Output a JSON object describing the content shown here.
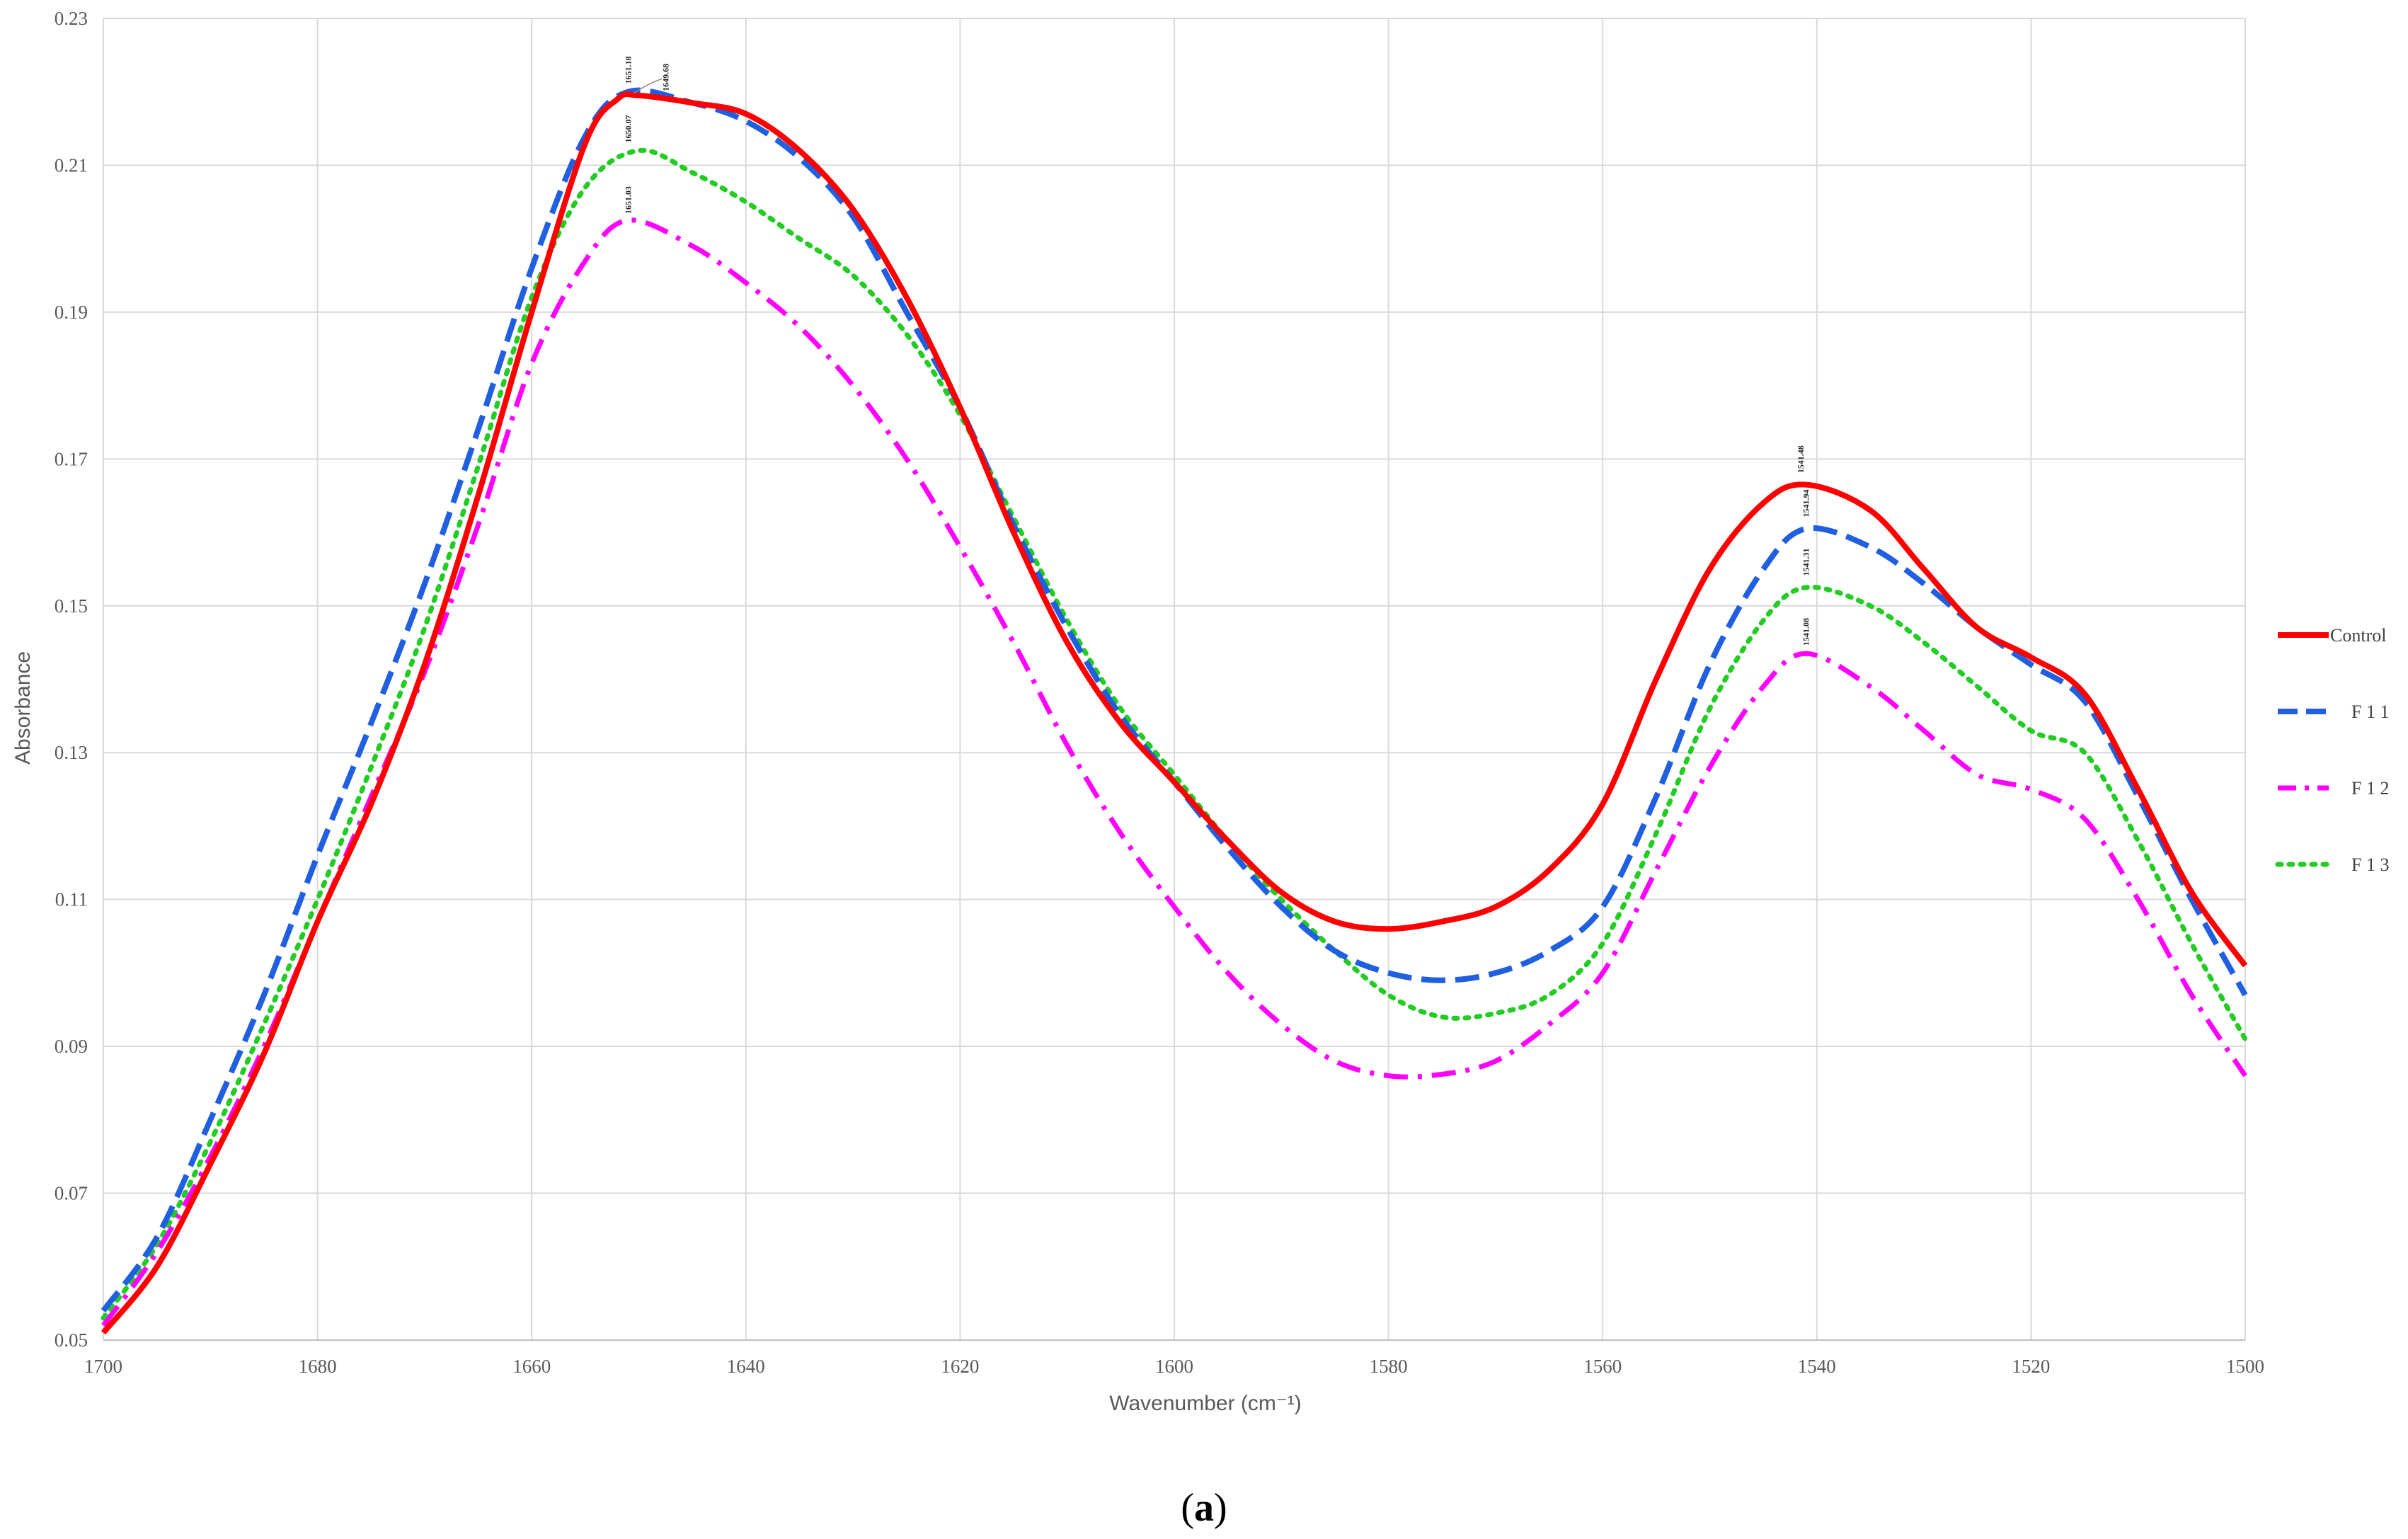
{
  "chart_data": {
    "type": "line",
    "title": "",
    "xlabel": "Wavenumber (cm⁻¹)",
    "ylabel": "Absorbance",
    "xlim": [
      1700,
      1500
    ],
    "x_reversed": true,
    "ylim": [
      0.05,
      0.23
    ],
    "x_ticks": [
      1700,
      1680,
      1660,
      1640,
      1620,
      1600,
      1580,
      1560,
      1540,
      1520,
      1500
    ],
    "y_ticks": [
      "0.05",
      "0.07",
      "0.09",
      "0.11",
      "0.13",
      "0.15",
      "0.17",
      "0.19",
      "0.21",
      "0.23"
    ],
    "grid": true,
    "legend_position": "right",
    "caption": {
      "open": "(",
      "letter": "a",
      "close": ")"
    },
    "series": [
      {
        "name": "Control",
        "color": "#ff0000",
        "style": "solid",
        "x": [
          1700,
          1695,
          1690,
          1685,
          1680,
          1675,
          1670,
          1665,
          1660,
          1655,
          1652,
          1650,
          1645,
          1640,
          1635,
          1630,
          1625,
          1620,
          1615,
          1610,
          1605,
          1600,
          1595,
          1590,
          1585,
          1580,
          1575,
          1570,
          1565,
          1560,
          1555,
          1550,
          1545,
          1541,
          1535,
          1530,
          1525,
          1520,
          1515,
          1510,
          1505,
          1500
        ],
        "y": [
          0.051,
          0.06,
          0.074,
          0.089,
          0.107,
          0.123,
          0.142,
          0.165,
          0.19,
          0.213,
          0.219,
          0.2195,
          0.2185,
          0.217,
          0.212,
          0.204,
          0.192,
          0.177,
          0.16,
          0.145,
          0.134,
          0.126,
          0.118,
          0.111,
          0.107,
          0.106,
          0.107,
          0.109,
          0.114,
          0.123,
          0.14,
          0.155,
          0.164,
          0.1665,
          0.163,
          0.155,
          0.147,
          0.143,
          0.138,
          0.125,
          0.111,
          0.101
        ]
      },
      {
        "name": "F 1 1",
        "color": "#1f5fe0",
        "style": "dashed",
        "x": [
          1700,
          1695,
          1690,
          1685,
          1680,
          1675,
          1670,
          1665,
          1660,
          1655,
          1651,
          1645,
          1640,
          1635,
          1630,
          1625,
          1620,
          1615,
          1610,
          1605,
          1600,
          1595,
          1590,
          1585,
          1580,
          1575,
          1570,
          1565,
          1560,
          1555,
          1550,
          1545,
          1541,
          1535,
          1530,
          1525,
          1520,
          1515,
          1510,
          1505,
          1500
        ],
        "y": [
          0.054,
          0.064,
          0.08,
          0.097,
          0.116,
          0.134,
          0.153,
          0.174,
          0.196,
          0.214,
          0.22,
          0.2185,
          0.216,
          0.211,
          0.203,
          0.19,
          0.177,
          0.161,
          0.147,
          0.135,
          0.126,
          0.117,
          0.109,
          0.103,
          0.1,
          0.099,
          0.1,
          0.103,
          0.109,
          0.124,
          0.142,
          0.155,
          0.1605,
          0.158,
          0.153,
          0.147,
          0.142,
          0.137,
          0.124,
          0.11,
          0.097
        ]
      },
      {
        "name": "F 1 2",
        "color": "#ff00ff",
        "style": "dashdot",
        "x": [
          1700,
          1695,
          1690,
          1685,
          1680,
          1675,
          1670,
          1665,
          1660,
          1655,
          1651,
          1645,
          1640,
          1635,
          1630,
          1625,
          1620,
          1615,
          1610,
          1605,
          1600,
          1595,
          1590,
          1585,
          1580,
          1575,
          1570,
          1565,
          1560,
          1555,
          1550,
          1545,
          1541,
          1535,
          1530,
          1525,
          1520,
          1515,
          1510,
          1505,
          1500
        ],
        "y": [
          0.052,
          0.062,
          0.075,
          0.09,
          0.107,
          0.124,
          0.141,
          0.161,
          0.183,
          0.197,
          0.2025,
          0.199,
          0.194,
          0.188,
          0.18,
          0.17,
          0.158,
          0.145,
          0.131,
          0.119,
          0.109,
          0.1,
          0.093,
          0.088,
          0.086,
          0.0862,
          0.088,
          0.093,
          0.1,
          0.114,
          0.128,
          0.139,
          0.1435,
          0.139,
          0.133,
          0.127,
          0.125,
          0.121,
          0.11,
          0.097,
          0.086
        ]
      },
      {
        "name": "F 1 3",
        "color": "#22cc22",
        "style": "dotted",
        "x": [
          1700,
          1695,
          1690,
          1685,
          1680,
          1675,
          1670,
          1665,
          1660,
          1655,
          1650,
          1645,
          1640,
          1635,
          1630,
          1625,
          1620,
          1615,
          1610,
          1605,
          1600,
          1595,
          1590,
          1585,
          1580,
          1575,
          1570,
          1565,
          1560,
          1555,
          1550,
          1545,
          1541,
          1535,
          1530,
          1525,
          1520,
          1515,
          1510,
          1505,
          1500
        ],
        "y": [
          0.053,
          0.063,
          0.077,
          0.093,
          0.11,
          0.128,
          0.147,
          0.169,
          0.192,
          0.207,
          0.212,
          0.209,
          0.205,
          0.2,
          0.195,
          0.187,
          0.176,
          0.162,
          0.148,
          0.136,
          0.127,
          0.118,
          0.11,
          0.103,
          0.097,
          0.094,
          0.0945,
          0.097,
          0.104,
          0.119,
          0.136,
          0.148,
          0.1525,
          0.15,
          0.145,
          0.139,
          0.133,
          0.13,
          0.118,
          0.104,
          0.091
        ]
      }
    ],
    "annotations": [
      {
        "text": "1651.18",
        "x": 1651.0,
        "y": 0.2205
      },
      {
        "text": "1649.68",
        "x": 1647.5,
        "y": 0.2195
      },
      {
        "text": "1650.07",
        "x": 1651.0,
        "y": 0.2125
      },
      {
        "text": "1651.03",
        "x": 1651.0,
        "y": 0.2028
      },
      {
        "text": "1541.48",
        "x": 1541.5,
        "y": 0.1675
      },
      {
        "text": "1541.94",
        "x": 1541.0,
        "y": 0.1615
      },
      {
        "text": "1541.31",
        "x": 1541.0,
        "y": 0.1535
      },
      {
        "text": "1541.08",
        "x": 1541.0,
        "y": 0.144
      }
    ]
  }
}
